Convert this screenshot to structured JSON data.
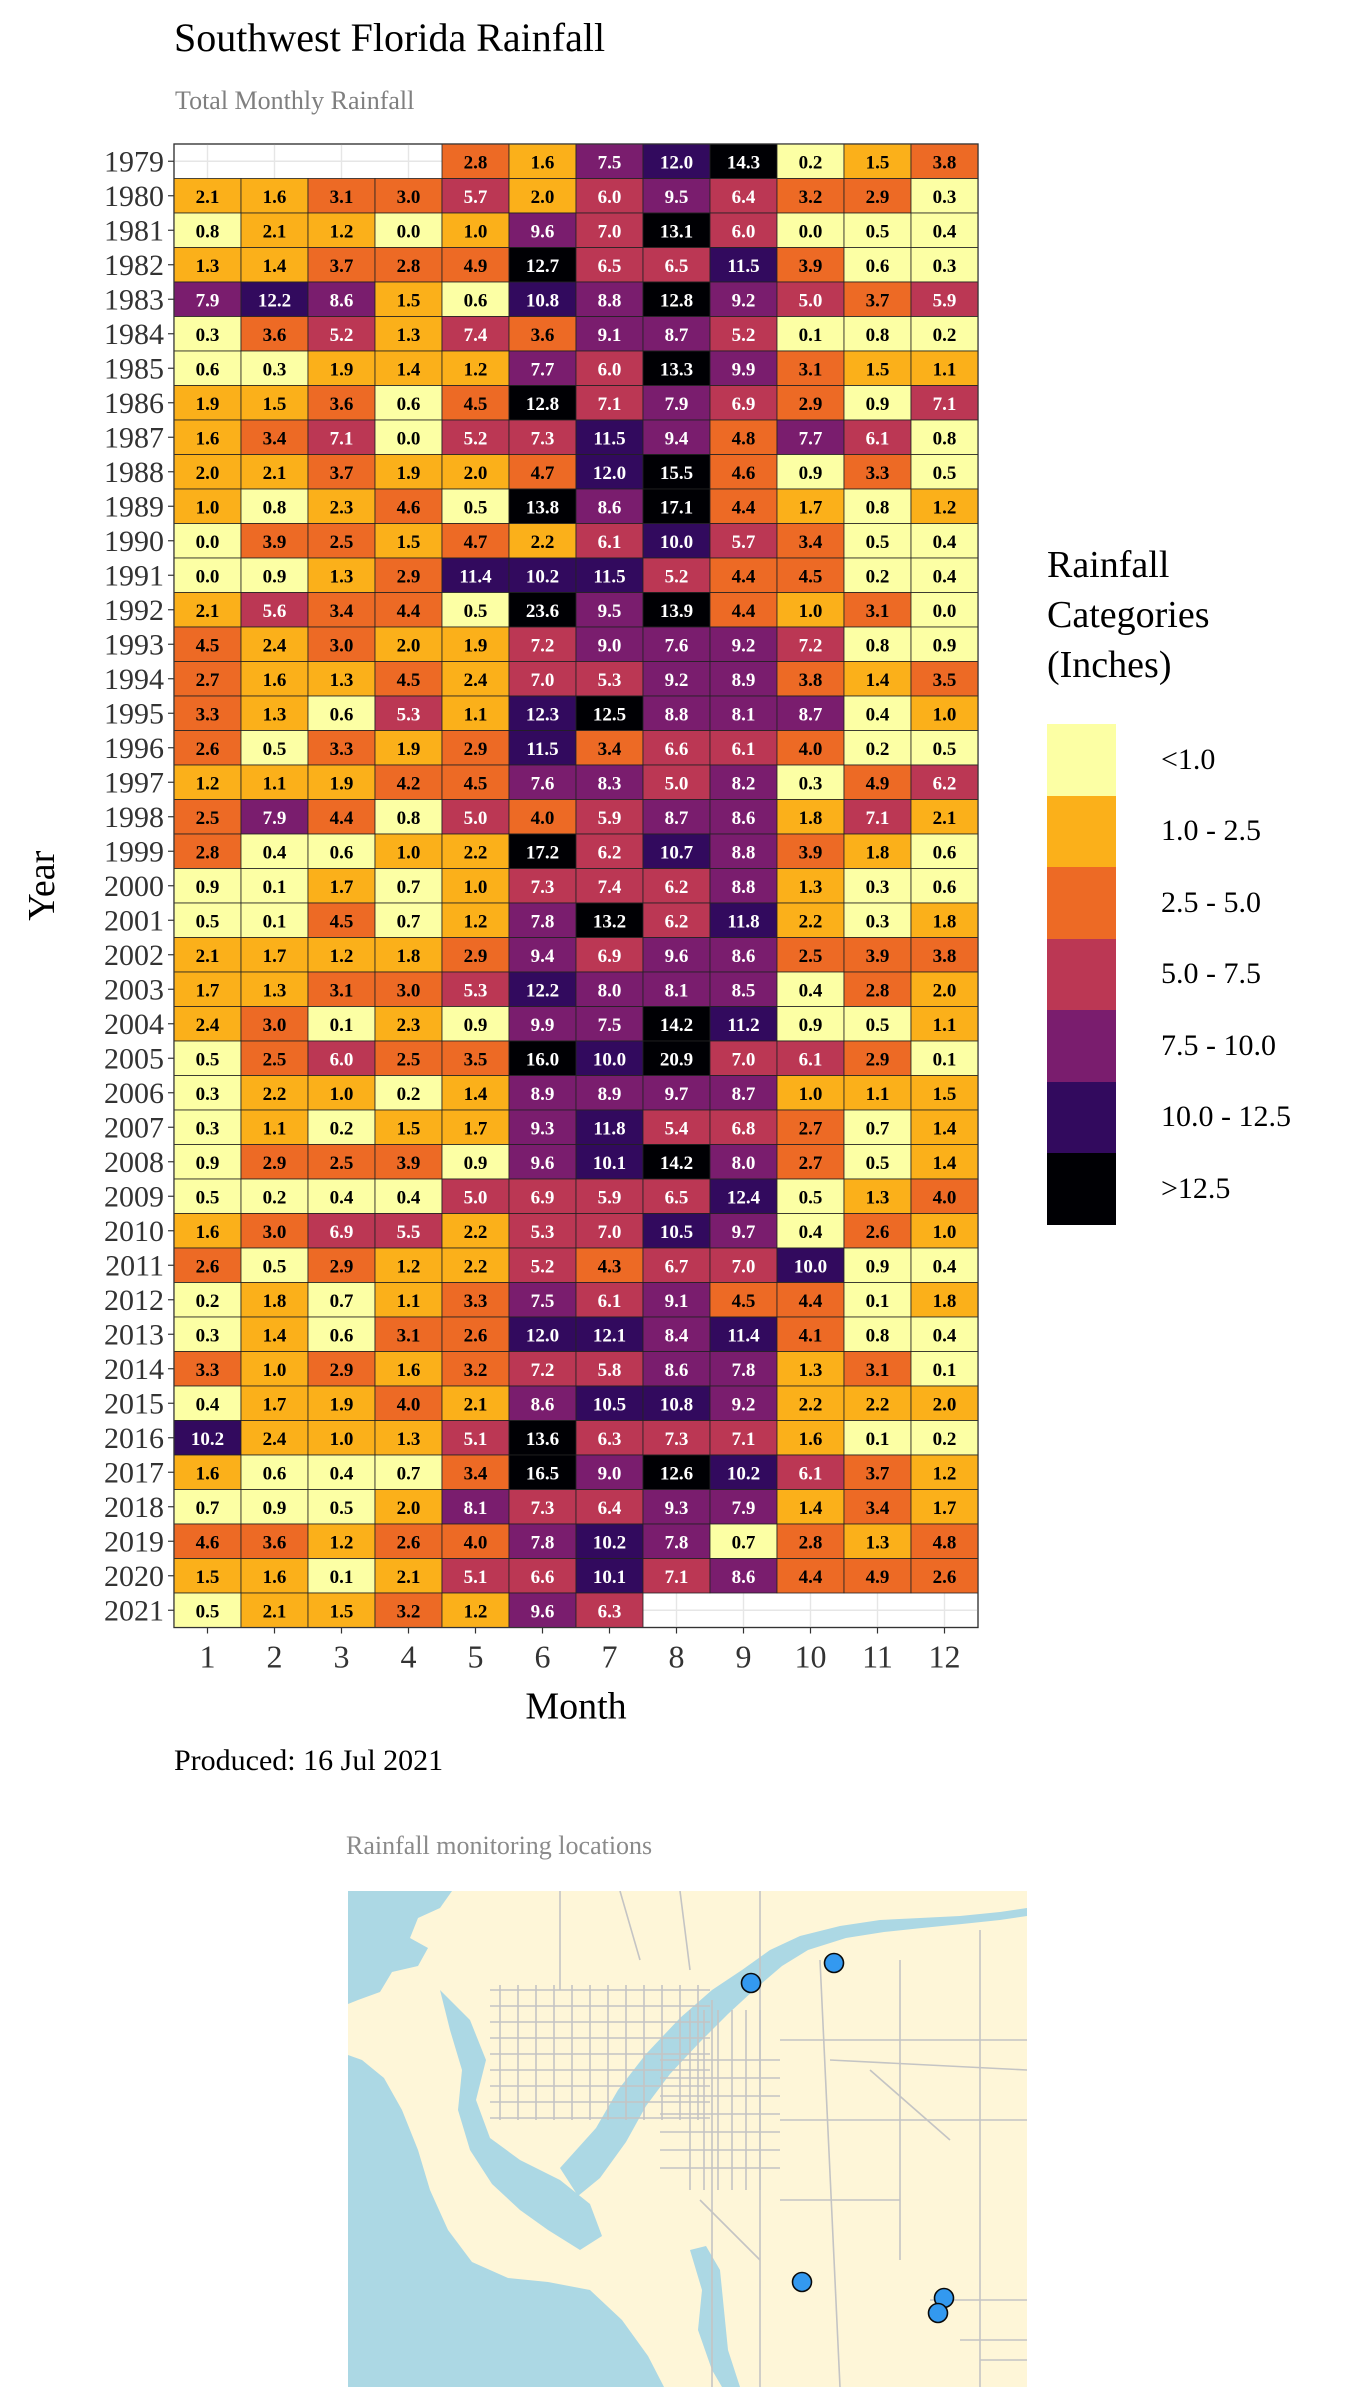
{
  "header": {
    "title": "Southwest Florida Rainfall",
    "subtitle": "Total Monthly Rainfall"
  },
  "footer": {
    "produced": "Produced: 16 Jul 2021"
  },
  "map": {
    "title": "Rainfall monitoring locations",
    "colors": {
      "land": "#FEF6D8",
      "water": "#ACD8E4",
      "roads": "#C4C4C4",
      "station": "#3399F0"
    },
    "station_count": 5
  },
  "legend": {
    "title_lines": [
      "Rainfall",
      "Categories",
      "(Inches)"
    ],
    "items": [
      {
        "label": "<1.0",
        "color": "#FCFFA4"
      },
      {
        "label": "1.0 - 2.5",
        "color": "#FBB01A"
      },
      {
        "label": "2.5 - 5.0",
        "color": "#ED6A25"
      },
      {
        "label": "5.0 - 7.5",
        "color": "#BB3754"
      },
      {
        "label": "7.5 - 10.0",
        "color": "#7A1D6E"
      },
      {
        "label": "10.0 - 12.5",
        "color": "#320A5E"
      },
      {
        "label": ">12.5",
        "color": "#000004"
      }
    ]
  },
  "chart_data": {
    "type": "heatmap",
    "xlabel": "Month",
    "ylabel": "Year",
    "x": [
      1,
      2,
      3,
      4,
      5,
      6,
      7,
      8,
      9,
      10,
      11,
      12
    ],
    "y": [
      1979,
      1980,
      1981,
      1982,
      1983,
      1984,
      1985,
      1986,
      1987,
      1988,
      1989,
      1990,
      1991,
      1992,
      1993,
      1994,
      1995,
      1996,
      1997,
      1998,
      1999,
      2000,
      2001,
      2002,
      2003,
      2004,
      2005,
      2006,
      2007,
      2008,
      2009,
      2010,
      2011,
      2012,
      2013,
      2014,
      2015,
      2016,
      2017,
      2018,
      2019,
      2020,
      2021
    ],
    "values": [
      [
        null,
        null,
        null,
        null,
        2.8,
        1.6,
        7.5,
        12.0,
        14.3,
        0.2,
        1.5,
        3.8
      ],
      [
        2.1,
        1.6,
        3.1,
        3.0,
        5.7,
        2.0,
        6.0,
        9.5,
        6.4,
        3.2,
        2.9,
        0.3
      ],
      [
        0.8,
        2.1,
        1.2,
        0.0,
        1.0,
        9.6,
        7.0,
        13.1,
        6.0,
        0.0,
        0.5,
        0.4
      ],
      [
        1.3,
        1.4,
        3.7,
        2.8,
        4.9,
        12.7,
        6.5,
        6.5,
        11.5,
        3.9,
        0.6,
        0.3
      ],
      [
        7.9,
        12.2,
        8.6,
        1.5,
        0.6,
        10.8,
        8.8,
        12.8,
        9.2,
        5.0,
        3.7,
        5.9
      ],
      [
        0.3,
        3.6,
        5.2,
        1.3,
        7.4,
        3.6,
        9.1,
        8.7,
        5.2,
        0.1,
        0.8,
        0.2
      ],
      [
        0.6,
        0.3,
        1.9,
        1.4,
        1.2,
        7.7,
        6.0,
        13.3,
        9.9,
        3.1,
        1.5,
        1.1
      ],
      [
        1.9,
        1.5,
        3.6,
        0.6,
        4.5,
        12.8,
        7.1,
        7.9,
        6.9,
        2.9,
        0.9,
        7.1
      ],
      [
        1.6,
        3.4,
        7.1,
        0.0,
        5.2,
        7.3,
        11.5,
        9.4,
        4.8,
        7.7,
        6.1,
        0.8
      ],
      [
        2.0,
        2.1,
        3.7,
        1.9,
        2.0,
        4.7,
        12.0,
        15.5,
        4.6,
        0.9,
        3.3,
        0.5
      ],
      [
        1.0,
        0.8,
        2.3,
        4.6,
        0.5,
        13.8,
        8.6,
        17.1,
        4.4,
        1.7,
        0.8,
        1.2
      ],
      [
        0.0,
        3.9,
        2.5,
        1.5,
        4.7,
        2.2,
        6.1,
        10.0,
        5.7,
        3.4,
        0.5,
        0.4
      ],
      [
        0.0,
        0.9,
        1.3,
        2.9,
        11.4,
        10.2,
        11.5,
        5.2,
        4.4,
        4.5,
        0.2,
        0.4
      ],
      [
        2.1,
        5.6,
        3.4,
        4.4,
        0.5,
        23.6,
        9.5,
        13.9,
        4.4,
        1.0,
        3.1,
        0.0
      ],
      [
        4.5,
        2.4,
        3.0,
        2.0,
        1.9,
        7.2,
        9.0,
        7.6,
        9.2,
        7.2,
        0.8,
        0.9
      ],
      [
        2.7,
        1.6,
        1.3,
        4.5,
        2.4,
        7.0,
        5.3,
        9.2,
        8.9,
        3.8,
        1.4,
        3.5
      ],
      [
        3.3,
        1.3,
        0.6,
        5.3,
        1.1,
        12.3,
        12.5,
        8.8,
        8.1,
        8.7,
        0.4,
        1.0
      ],
      [
        2.6,
        0.5,
        3.3,
        1.9,
        2.9,
        11.5,
        3.4,
        6.6,
        6.1,
        4.0,
        0.2,
        0.5
      ],
      [
        1.2,
        1.1,
        1.9,
        4.2,
        4.5,
        7.6,
        8.3,
        5.0,
        8.2,
        0.3,
        4.9,
        6.2
      ],
      [
        2.5,
        7.9,
        4.4,
        0.8,
        5.0,
        4.0,
        5.9,
        8.7,
        8.6,
        1.8,
        7.1,
        2.1
      ],
      [
        2.8,
        0.4,
        0.6,
        1.0,
        2.2,
        17.2,
        6.2,
        10.7,
        8.8,
        3.9,
        1.8,
        0.6
      ],
      [
        0.9,
        0.1,
        1.7,
        0.7,
        1.0,
        7.3,
        7.4,
        6.2,
        8.8,
        1.3,
        0.3,
        0.6
      ],
      [
        0.5,
        0.1,
        4.5,
        0.7,
        1.2,
        7.8,
        13.2,
        6.2,
        11.8,
        2.2,
        0.3,
        1.8
      ],
      [
        2.1,
        1.7,
        1.2,
        1.8,
        2.9,
        9.4,
        6.9,
        9.6,
        8.6,
        2.5,
        3.9,
        3.8
      ],
      [
        1.7,
        1.3,
        3.1,
        3.0,
        5.3,
        12.2,
        8.0,
        8.1,
        8.5,
        0.4,
        2.8,
        2.0
      ],
      [
        2.4,
        3.0,
        0.1,
        2.3,
        0.9,
        9.9,
        7.5,
        14.2,
        11.2,
        0.9,
        0.5,
        1.1
      ],
      [
        0.5,
        2.5,
        6.0,
        2.5,
        3.5,
        16.0,
        10.0,
        20.9,
        7.0,
        6.1,
        2.9,
        0.1
      ],
      [
        0.3,
        2.2,
        1.0,
        0.2,
        1.4,
        8.9,
        8.9,
        9.7,
        8.7,
        1.0,
        1.1,
        1.5
      ],
      [
        0.3,
        1.1,
        0.2,
        1.5,
        1.7,
        9.3,
        11.8,
        5.4,
        6.8,
        2.7,
        0.7,
        1.4
      ],
      [
        0.9,
        2.9,
        2.5,
        3.9,
        0.9,
        9.6,
        10.1,
        14.2,
        8.0,
        2.7,
        0.5,
        1.4
      ],
      [
        0.5,
        0.2,
        0.4,
        0.4,
        5.0,
        6.9,
        5.9,
        6.5,
        12.4,
        0.5,
        1.3,
        4.0
      ],
      [
        1.6,
        3.0,
        6.9,
        5.5,
        2.2,
        5.3,
        7.0,
        10.5,
        9.7,
        0.4,
        2.6,
        1.0
      ],
      [
        2.6,
        0.5,
        2.9,
        1.2,
        2.2,
        5.2,
        4.3,
        6.7,
        7.0,
        10.0,
        0.9,
        0.4
      ],
      [
        0.2,
        1.8,
        0.7,
        1.1,
        3.3,
        7.5,
        6.1,
        9.1,
        4.5,
        4.4,
        0.1,
        1.8
      ],
      [
        0.3,
        1.4,
        0.6,
        3.1,
        2.6,
        12.0,
        12.1,
        8.4,
        11.4,
        4.1,
        0.8,
        0.4
      ],
      [
        3.3,
        1.0,
        2.9,
        1.6,
        3.2,
        7.2,
        5.8,
        8.6,
        7.8,
        1.3,
        3.1,
        0.1
      ],
      [
        0.4,
        1.7,
        1.9,
        4.0,
        2.1,
        8.6,
        10.5,
        10.8,
        9.2,
        2.2,
        2.2,
        2.0
      ],
      [
        10.2,
        2.4,
        1.0,
        1.3,
        5.1,
        13.6,
        6.3,
        7.3,
        7.1,
        1.6,
        0.1,
        0.2
      ],
      [
        1.6,
        0.6,
        0.4,
        0.7,
        3.4,
        16.5,
        9.0,
        12.6,
        10.2,
        6.1,
        3.7,
        1.2
      ],
      [
        0.7,
        0.9,
        0.5,
        2.0,
        8.1,
        7.3,
        6.4,
        9.3,
        7.9,
        1.4,
        3.4,
        1.7
      ],
      [
        4.6,
        3.6,
        1.2,
        2.6,
        4.0,
        7.8,
        10.2,
        7.8,
        0.7,
        2.8,
        1.3,
        4.8
      ],
      [
        1.5,
        1.6,
        0.1,
        2.1,
        5.1,
        6.6,
        10.1,
        7.1,
        8.6,
        4.4,
        4.9,
        2.6
      ],
      [
        0.5,
        2.1,
        1.5,
        3.2,
        1.2,
        9.6,
        6.3,
        null,
        null,
        null,
        null,
        null
      ]
    ]
  }
}
